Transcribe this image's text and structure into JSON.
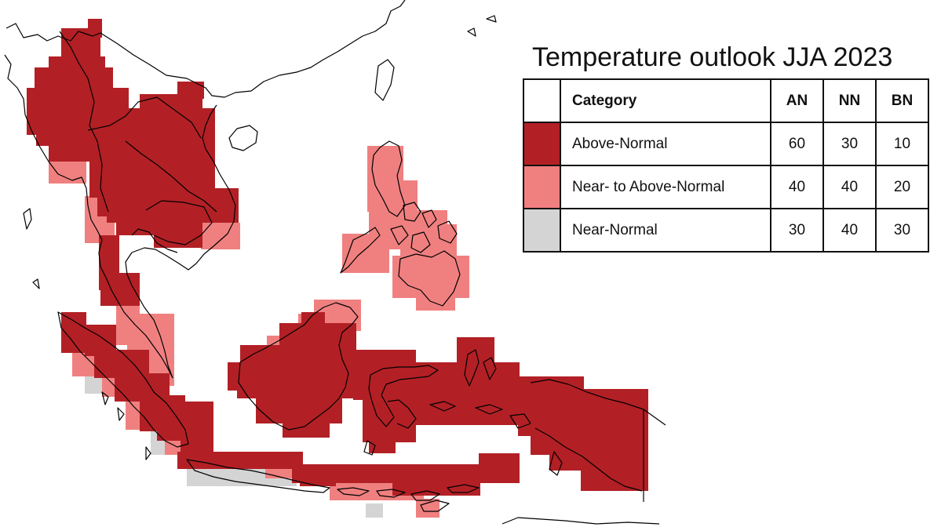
{
  "title": "Temperature outlook JJA 2023",
  "legend": {
    "headers": {
      "category": "Category",
      "an": "AN",
      "nn": "NN",
      "bn": "BN"
    },
    "rows": [
      {
        "category": "Above-Normal",
        "an": "60",
        "nn": "30",
        "bn": "10",
        "color": "#b22025"
      },
      {
        "category": "Near- to Above-Normal",
        "an": "40",
        "nn": "40",
        "bn": "20",
        "color": "#f08080"
      },
      {
        "category": "Near-Normal",
        "an": "30",
        "nn": "40",
        "bn": "30",
        "color": "#d4d4d4"
      }
    ]
  },
  "colors": {
    "above_normal": "#b22025",
    "near_to_above_normal": "#f08080",
    "near_normal": "#d4d4d4",
    "coastline": "#000000"
  }
}
